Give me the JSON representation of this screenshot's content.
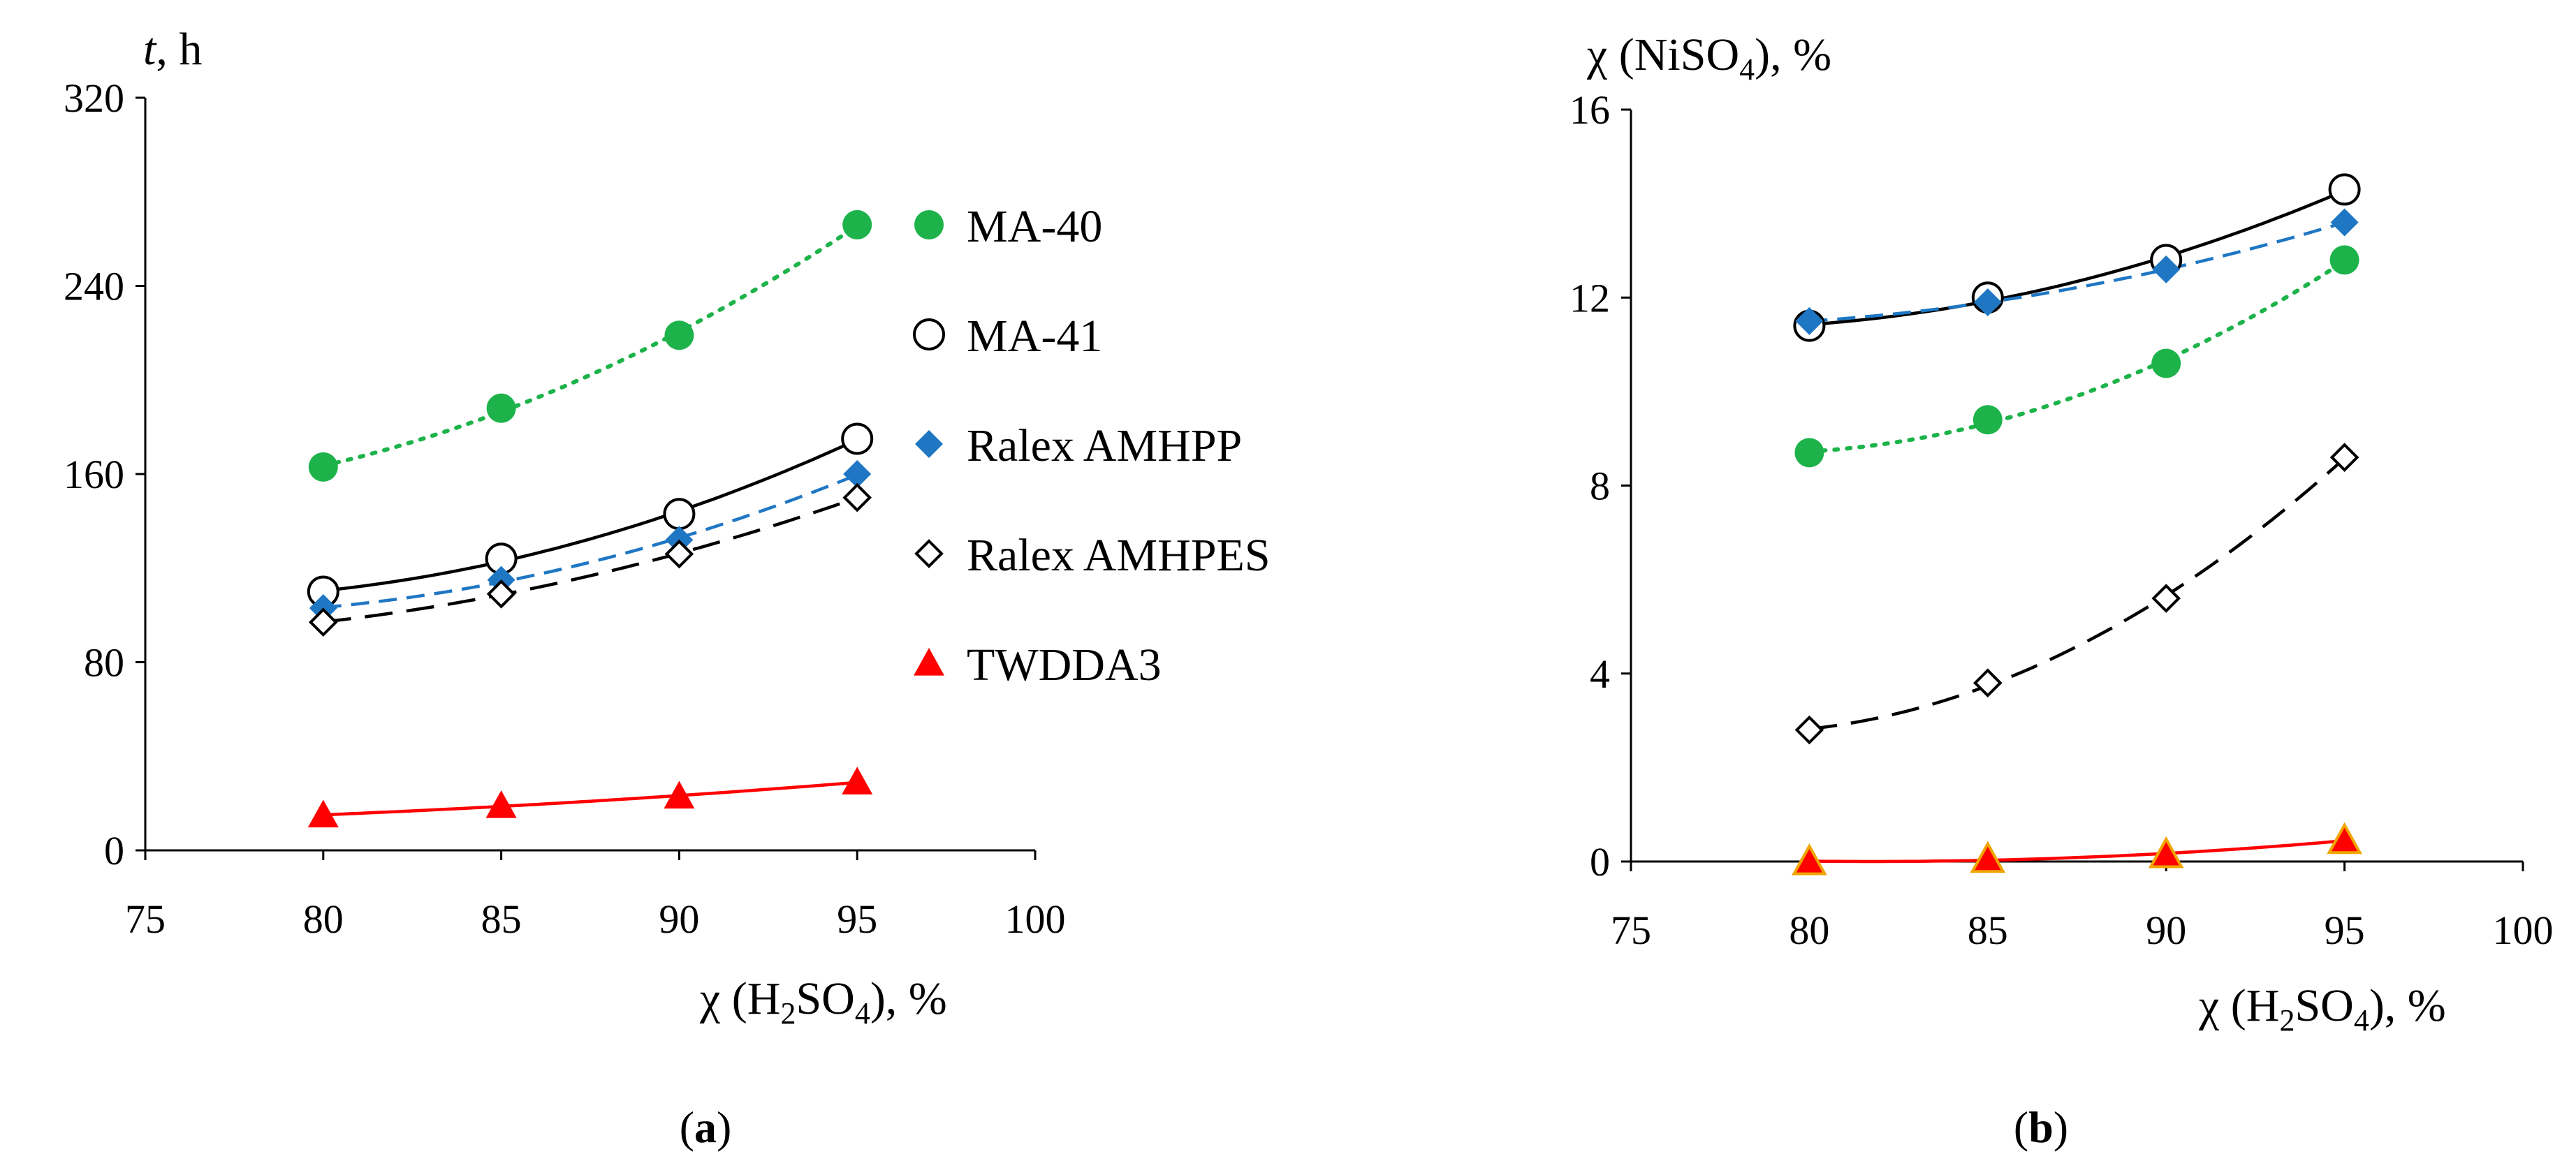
{
  "chart_data": [
    {
      "type": "scatter",
      "panel_label": "a",
      "ylabel_var": "t",
      "ylabel_unit": ", h",
      "xlabel_prefix": "χ (H",
      "xlabel_sub": "2",
      "xlabel_mid": "SO",
      "xlabel_sub2": "4",
      "xlabel_suffix": "), %",
      "xlim": [
        75,
        100
      ],
      "ylim": [
        0,
        320
      ],
      "x_ticks": [
        "75",
        "80",
        "85",
        "90",
        "95",
        "100"
      ],
      "y_ticks": [
        "0",
        "80",
        "160",
        "240",
        "320"
      ],
      "legend": "right",
      "series": [
        {
          "name": "MA-40",
          "x": [
            80,
            85,
            90,
            95
          ],
          "y": [
            163,
            188,
            219,
            266
          ],
          "marker": "filled-circle",
          "line": "dotted",
          "color": "#1db34a"
        },
        {
          "name": "MA-41",
          "x": [
            80,
            85,
            90,
            95
          ],
          "y": [
            110,
            124,
            143,
            175
          ],
          "marker": "open-circle",
          "line": "solid",
          "color": "#000000"
        },
        {
          "name": "Ralex AMHPP",
          "x": [
            80,
            85,
            90,
            95
          ],
          "y": [
            103,
            115,
            132,
            160
          ],
          "marker": "filled-diamond",
          "line": "dashed",
          "color": "#1f77c4"
        },
        {
          "name": "Ralex AMHPES",
          "x": [
            80,
            85,
            90,
            95
          ],
          "y": [
            97,
            109,
            126,
            150
          ],
          "marker": "open-diamond",
          "line": "long-dashed",
          "color": "#000000"
        },
        {
          "name": "TWDDA3",
          "x": [
            80,
            85,
            90,
            95
          ],
          "y": [
            15,
            19,
            23,
            29
          ],
          "marker": "filled-triangle",
          "line": "solid",
          "color": "#ff0000"
        }
      ]
    },
    {
      "type": "scatter",
      "panel_label": "b",
      "ylabel_prefix": "χ (NiSO",
      "ylabel_sub": "4",
      "ylabel_suffix": "), %",
      "xlabel_prefix": "χ (H",
      "xlabel_sub": "2",
      "xlabel_mid": "SO",
      "xlabel_sub2": "4",
      "xlabel_suffix": "), %",
      "xlim": [
        75,
        100
      ],
      "ylim": [
        0,
        16
      ],
      "x_ticks": [
        "75",
        "80",
        "85",
        "90",
        "95",
        "100"
      ],
      "y_ticks": [
        "0",
        "4",
        "8",
        "12",
        "16"
      ],
      "series": [
        {
          "name": "MA-40",
          "x": [
            80,
            85,
            90,
            95
          ],
          "y": [
            8.7,
            9.4,
            10.6,
            12.8
          ],
          "marker": "filled-circle",
          "line": "dotted",
          "color": "#1db34a"
        },
        {
          "name": "MA-41",
          "x": [
            80,
            85,
            90,
            95
          ],
          "y": [
            11.4,
            12.0,
            12.8,
            14.3
          ],
          "marker": "open-circle",
          "line": "solid",
          "color": "#000000"
        },
        {
          "name": "Ralex AMHPP",
          "x": [
            80,
            85,
            90,
            95
          ],
          "y": [
            11.5,
            11.9,
            12.6,
            13.6
          ],
          "marker": "filled-diamond",
          "line": "dashed",
          "color": "#1f77c4"
        },
        {
          "name": "Ralex AMHPES",
          "x": [
            80,
            85,
            90,
            95
          ],
          "y": [
            2.8,
            3.8,
            5.6,
            8.6
          ],
          "marker": "open-diamond",
          "line": "long-dashed",
          "color": "#000000"
        },
        {
          "name": "TWDDA3",
          "x": [
            80,
            85,
            90,
            95
          ],
          "y": [
            0.0,
            0.05,
            0.15,
            0.45
          ],
          "marker": "filled-triangle-outlined",
          "line": "solid",
          "color": "#ff0000"
        }
      ]
    }
  ]
}
